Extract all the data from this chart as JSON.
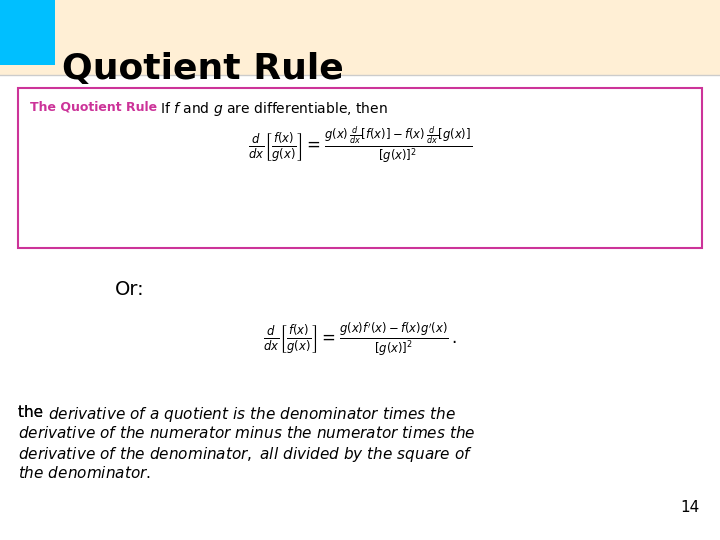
{
  "title": "Quotient Rule",
  "title_color": "#000000",
  "title_bg_color": "#FFEFD5",
  "title_accent_color": "#00BFFF",
  "box_border_color": "#CC3399",
  "box_label_color": "#CC3399",
  "box_label": "The Quotient Rule",
  "box_text": "If $f$ and $g$ are differentiable, then",
  "formula1": "$\\dfrac{d}{dx}\\left[\\dfrac{f(x)}{g(x)}\\right] = \\dfrac{g(x)\\,\\dfrac{d}{dx}[f(x)] - f(x)\\,\\dfrac{d}{dx}[g(x)]}{[g(x)]^2}$",
  "or_label": "Or:",
  "formula2": "$\\dfrac{d}{dx}\\left[\\dfrac{f(x)}{g(x)}\\right] = \\dfrac{g(x)f'(x) - f(x)g'(x)}{[g(x)]^2}\\,.$",
  "bottom_text_line1": "the ",
  "bottom_text_italic1": "derivative of a quotient is the denominator times the",
  "bottom_text_italic2": "derivative of the numerator minus the numerator times the",
  "bottom_text_italic3": "derivative of the denominator, all divided by the square of",
  "bottom_text_italic4": "the denominator.",
  "page_number": "14",
  "bg_color": "#FFFFFF"
}
